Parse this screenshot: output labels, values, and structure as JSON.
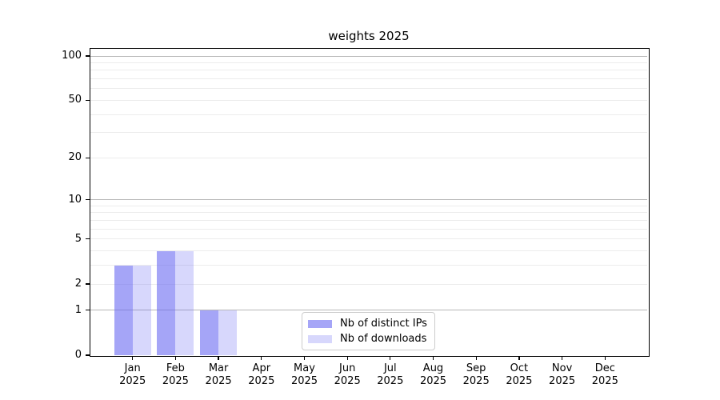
{
  "chart_data": {
    "type": "bar",
    "title": "weights 2025",
    "categories": [
      "Jan",
      "Feb",
      "Mar",
      "Apr",
      "May",
      "Jun",
      "Jul",
      "Aug",
      "Sep",
      "Oct",
      "Nov",
      "Dec"
    ],
    "year": "2025",
    "series": [
      {
        "name": "Nb of distinct IPs",
        "color": "#a5a5f8",
        "fill": "rgba(100,100,242,0.58)",
        "values": [
          3,
          4,
          1,
          0,
          0,
          0,
          0,
          0,
          0,
          0,
          0,
          0
        ]
      },
      {
        "name": "Nb of downloads",
        "color": "#d7d7fc",
        "fill": "rgba(100,100,242,0.26)",
        "values": [
          3,
          4,
          1,
          0,
          0,
          0,
          0,
          0,
          0,
          0,
          0,
          0
        ]
      }
    ],
    "xlabel": "",
    "ylabel": "",
    "yscale": "log1p",
    "ylim": [
      0,
      110
    ],
    "yticks": [
      0,
      1,
      2,
      5,
      10,
      20,
      50,
      100
    ],
    "gridlines": {
      "major_values": [
        1,
        10,
        100
      ],
      "minor_values": [
        2,
        3,
        4,
        5,
        6,
        7,
        8,
        9,
        20,
        30,
        40,
        50,
        60,
        70,
        80,
        90
      ],
      "major_color": "#b8b8b8",
      "minor_color": "#ececec"
    },
    "legend_position": "bottom-center",
    "axis_color": "#000000",
    "background_color": "#ffffff"
  }
}
